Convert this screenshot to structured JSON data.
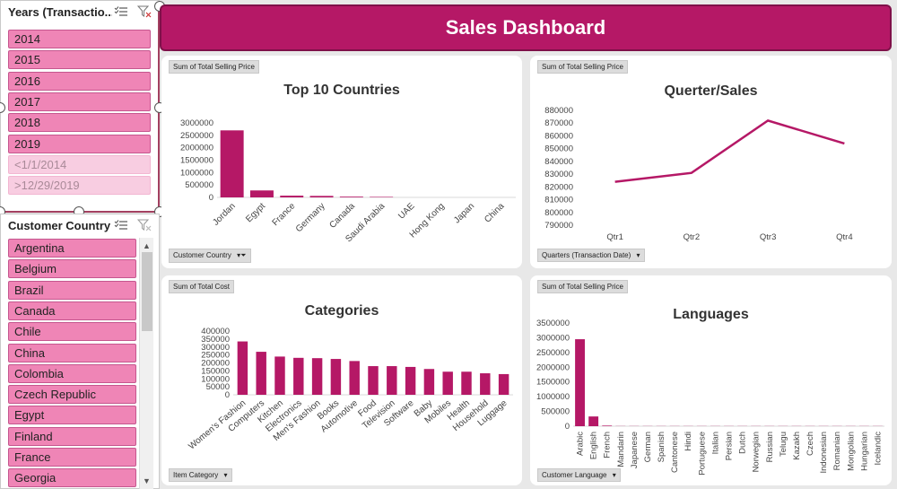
{
  "years_slicer": {
    "title": "Years (Transactio...",
    "items": [
      "2014",
      "2015",
      "2016",
      "2017",
      "2018",
      "2019"
    ],
    "dim_items": [
      "<1/1/2014",
      ">12/29/2019"
    ]
  },
  "country_slicer": {
    "title": "Customer Country",
    "items": [
      "Argentina",
      "Belgium",
      "Brazil",
      "Canada",
      "Chile",
      "China",
      "Colombia",
      "Czech Republic",
      "Egypt",
      "Finland",
      "France",
      "Georgia"
    ]
  },
  "header": {
    "title": "Sales Dashboard"
  },
  "colors": {
    "accent": "#b51866",
    "slicer_item": "#ef85b6",
    "slicer_border": "#c5568e"
  },
  "panels": {
    "countries": {
      "value_button": "Sum of Total Selling Price",
      "axis_button": "Customer Country",
      "title": "Top 10 Countries"
    },
    "quarters": {
      "value_button": "Sum of Total Selling Price",
      "axis_button": "Quarters (Transaction Date)",
      "title": "Querter/Sales"
    },
    "categories": {
      "value_button": "Sum of Total Cost",
      "axis_button": "Item Category",
      "title": "Categories"
    },
    "languages": {
      "value_button": "Sum of Total Selling Price",
      "axis_button": "Customer Language",
      "title": "Languages"
    }
  },
  "chart_data": [
    {
      "type": "bar",
      "title": "Top 10 Countries",
      "categories": [
        "Jordan",
        "Egypt",
        "France",
        "Germany",
        "Canada",
        "Saudi Arabia",
        "UAE",
        "Hong Kong",
        "Japan",
        "China"
      ],
      "values": [
        2700000,
        280000,
        70000,
        60000,
        30000,
        20000,
        0,
        0,
        0,
        0
      ],
      "ylim": [
        0,
        3000000
      ],
      "yticks": [
        "3000000",
        "2500000",
        "2000000",
        "1500000",
        "1000000",
        "500000",
        "0"
      ]
    },
    {
      "type": "line",
      "title": "Querter/Sales",
      "categories": [
        "Qtr1",
        "Qtr2",
        "Qtr3",
        "Qtr4"
      ],
      "values": [
        824000,
        831000,
        872000,
        854000
      ],
      "ylim": [
        790000,
        880000
      ],
      "yticks": [
        "880000",
        "870000",
        "860000",
        "850000",
        "840000",
        "830000",
        "820000",
        "810000",
        "800000",
        "790000"
      ]
    },
    {
      "type": "bar",
      "title": "Categories",
      "categories": [
        "Women's Fashion",
        "Computers",
        "Kitchen",
        "Electronics",
        "Men's Fashion",
        "Books",
        "Automotive",
        "Food",
        "Television",
        "Software",
        "Baby",
        "Mobiles",
        "Health",
        "Household",
        "Luggage"
      ],
      "values": [
        335000,
        270000,
        240000,
        232000,
        230000,
        225000,
        212000,
        180000,
        180000,
        175000,
        162000,
        145000,
        145000,
        135000,
        130000
      ],
      "ylim": [
        0,
        400000
      ],
      "yticks": [
        "400000",
        "350000",
        "300000",
        "250000",
        "200000",
        "150000",
        "100000",
        "50000",
        "0"
      ]
    },
    {
      "type": "bar",
      "title": "Languages",
      "categories": [
        "Arabic",
        "English",
        "French",
        "Mandarin",
        "Japanese",
        "German",
        "Spanish",
        "Cantonese",
        "Hindi",
        "Portuguese",
        "Italian",
        "Persian",
        "Dutch",
        "Norwegian",
        "Russian",
        "Telugu",
        "Kazakh",
        "Czech",
        "Indonesian",
        "Romanian",
        "Mongolian",
        "Hungarian",
        "Icelandic"
      ],
      "values": [
        2950000,
        330000,
        20000,
        5000,
        5000,
        5000,
        5000,
        5000,
        5000,
        5000,
        5000,
        5000,
        5000,
        5000,
        5000,
        5000,
        5000,
        5000,
        5000,
        5000,
        5000,
        5000,
        5000
      ],
      "ylim": [
        0,
        3500000
      ],
      "yticks": [
        "3500000",
        "3000000",
        "2500000",
        "2000000",
        "1500000",
        "1000000",
        "500000",
        "0"
      ]
    }
  ]
}
